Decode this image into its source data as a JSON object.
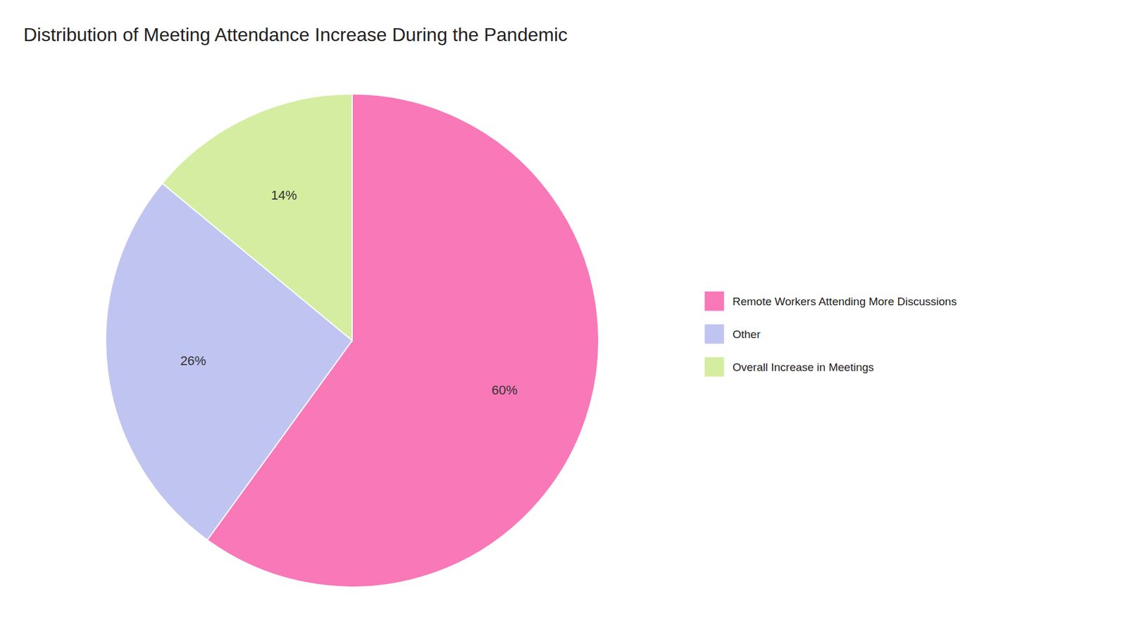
{
  "chart_data": {
    "type": "pie",
    "title": "Distribution of Meeting Attendance Increase During the Pandemic",
    "categories": [
      "Remote Workers Attending More Discussions",
      "Other",
      "Overall Increase in Meetings"
    ],
    "values": [
      60,
      26,
      14
    ],
    "value_labels": [
      "60%",
      "26%",
      "14%"
    ],
    "colors": [
      "#F878B8",
      "#C0C4F0",
      "#D4EDA0"
    ],
    "data_labels": true,
    "legend": "right"
  }
}
